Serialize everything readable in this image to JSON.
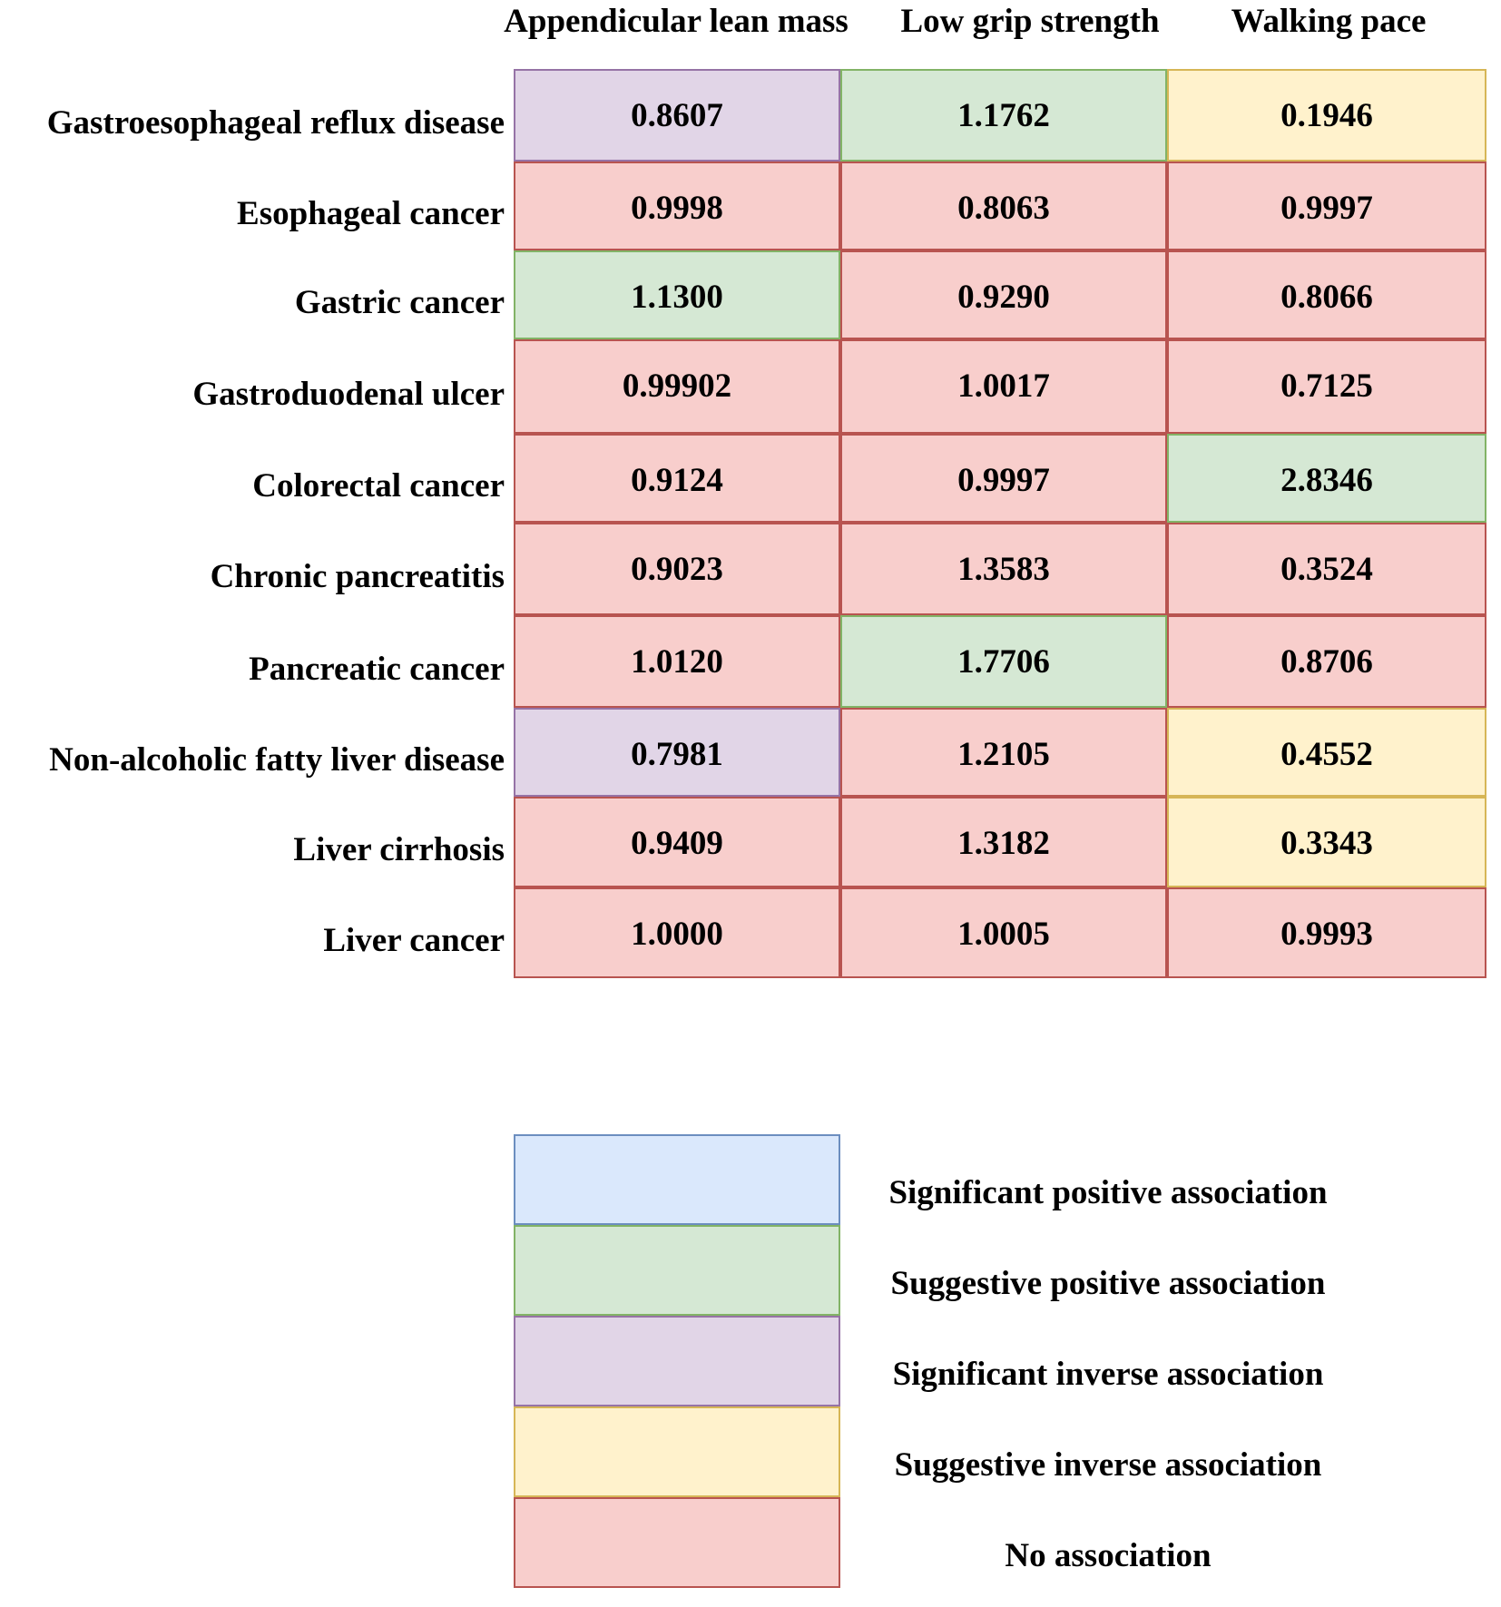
{
  "chart_data": {
    "type": "table",
    "columns": [
      "Appendicular lean mass",
      "Low grip strength",
      "Walking pace"
    ],
    "rows": [
      {
        "label": "Gastroesophageal reflux disease",
        "values": [
          "0.8607",
          "1.1762",
          "0.1946"
        ],
        "categories": [
          "significant_inverse",
          "suggestive_positive",
          "suggestive_inverse"
        ]
      },
      {
        "label": "Esophageal cancer",
        "values": [
          "0.9998",
          "0.8063",
          "0.9997"
        ],
        "categories": [
          "none",
          "none",
          "none"
        ]
      },
      {
        "label": "Gastric cancer",
        "values": [
          "1.1300",
          "0.9290",
          "0.8066"
        ],
        "categories": [
          "suggestive_positive",
          "none",
          "none"
        ]
      },
      {
        "label": "Gastroduodenal ulcer",
        "values": [
          "0.99902",
          "1.0017",
          "0.7125"
        ],
        "categories": [
          "none",
          "none",
          "none"
        ]
      },
      {
        "label": "Colorectal cancer",
        "values": [
          "0.9124",
          "0.9997",
          "2.8346"
        ],
        "categories": [
          "none",
          "none",
          "suggestive_positive"
        ]
      },
      {
        "label": "Chronic pancreatitis",
        "values": [
          "0.9023",
          "1.3583",
          "0.3524"
        ],
        "categories": [
          "none",
          "none",
          "none"
        ]
      },
      {
        "label": "Pancreatic cancer",
        "values": [
          "1.0120",
          "1.7706",
          "0.8706"
        ],
        "categories": [
          "none",
          "suggestive_positive",
          "none"
        ]
      },
      {
        "label": "Non-alcoholic fatty liver disease",
        "values": [
          "0.7981",
          "1.2105",
          "0.4552"
        ],
        "categories": [
          "significant_inverse",
          "none",
          "suggestive_inverse"
        ]
      },
      {
        "label": "Liver cirrhosis",
        "values": [
          "0.9409",
          "1.3182",
          "0.3343"
        ],
        "categories": [
          "none",
          "none",
          "suggestive_inverse"
        ]
      },
      {
        "label": "Liver cancer",
        "values": [
          "1.0000",
          "1.0005",
          "0.9993"
        ],
        "categories": [
          "none",
          "none",
          "none"
        ]
      }
    ],
    "legend": [
      {
        "key": "significant_positive",
        "label": "Significant positive association",
        "fill": "#dae8fc",
        "stroke": "#6c8ebf"
      },
      {
        "key": "suggestive_positive",
        "label": "Suggestive positive association",
        "fill": "#d5e8d4",
        "stroke": "#82b366"
      },
      {
        "key": "significant_inverse",
        "label": "Significant inverse association",
        "fill": "#e1d5e7",
        "stroke": "#9673a6"
      },
      {
        "key": "suggestive_inverse",
        "label": "Suggestive inverse association",
        "fill": "#fff2cc",
        "stroke": "#d6b656"
      },
      {
        "key": "none",
        "label": "No association",
        "fill": "#f8cecc",
        "stroke": "#b85450"
      }
    ]
  }
}
